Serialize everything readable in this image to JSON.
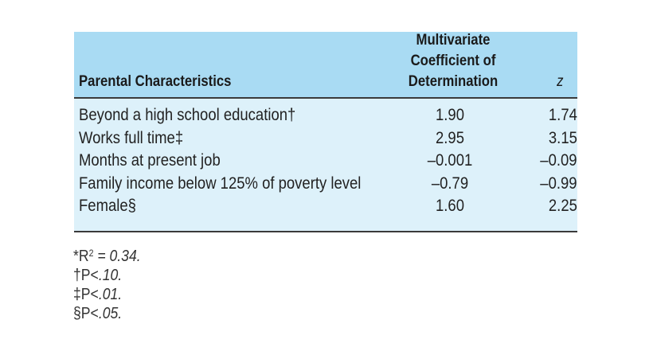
{
  "table": {
    "header": {
      "parental_characteristics": "Parental Characteristics",
      "coefficient_line1": "Multivariate",
      "coefficient_line2": "Coefficient of",
      "coefficient_line3": "Determination",
      "z": "z"
    },
    "rows": [
      {
        "label": "Beyond a high school education†",
        "coefficient": "1.90",
        "z": "1.74"
      },
      {
        "label": "Works full time‡",
        "coefficient": "2.95",
        "z": "3.15"
      },
      {
        "label": "Months at present job",
        "coefficient": "–0.001",
        "z": "–0.09"
      },
      {
        "label": "Family income below 125% of poverty level",
        "coefficient": "–0.79",
        "z": "–0.99"
      },
      {
        "label": "Female§",
        "coefficient": "1.60",
        "z": "2.25"
      }
    ]
  },
  "footnotes": {
    "r2_prefix": "*R",
    "r2_sup": "2",
    "r2_value": " = 0.34.",
    "dagger_prefix": "†P<",
    "dagger_value": ".10.",
    "double_dagger_prefix": "‡P<",
    "double_dagger_value": ".01.",
    "section_prefix": "§P<",
    "section_value": ".05."
  },
  "colors": {
    "header_band": "#a9dbf3",
    "body_band": "#ddf1fa",
    "rule": "#3a3a3a"
  }
}
